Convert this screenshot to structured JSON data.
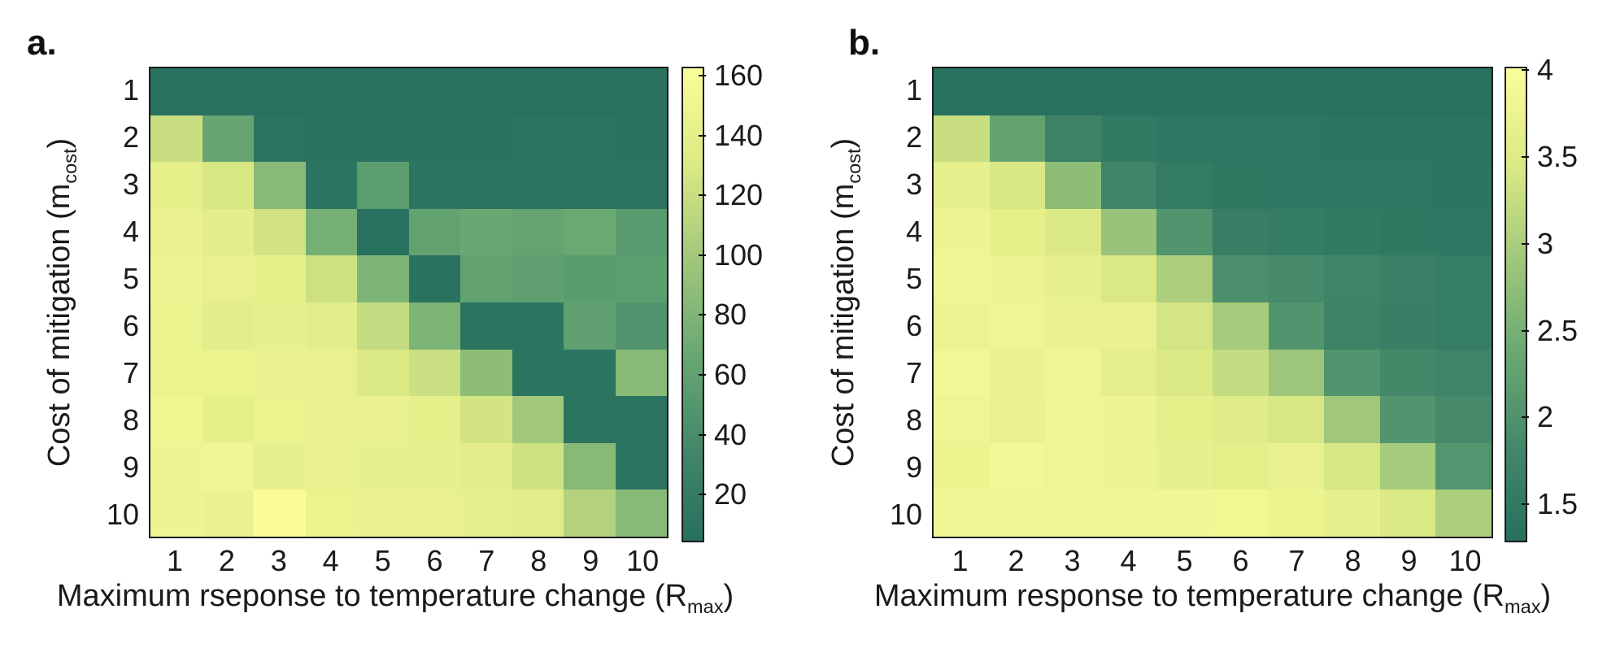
{
  "figure": {
    "background": "#ffffff",
    "colormap_stops": [
      [
        0.0,
        "#26705e"
      ],
      [
        0.2,
        "#44886a"
      ],
      [
        0.4,
        "#6aa973"
      ],
      [
        0.6,
        "#a2c87b"
      ],
      [
        0.8,
        "#dcea85"
      ],
      [
        1.0,
        "#fafc9a"
      ]
    ],
    "border_color": "#1c1c1c"
  },
  "chart_data": [
    {
      "type": "heatmap",
      "tag": "a.",
      "xlabel_pre": "Maximum rseponse to temperature change (R",
      "xlabel_sub": "max",
      "xlabel_post": ")",
      "ylabel_pre": "Cost of mitigation (m",
      "ylabel_sub": "cost",
      "ylabel_post": ")",
      "x_ticks": [
        "1",
        "2",
        "3",
        "4",
        "5",
        "6",
        "7",
        "8",
        "9",
        "10"
      ],
      "y_ticks": [
        "1",
        "2",
        "3",
        "4",
        "5",
        "6",
        "7",
        "8",
        "9",
        "10"
      ],
      "vmin": 4,
      "vmax": 163,
      "colorbar_ticks": [
        "160",
        "140",
        "120",
        "100",
        "80",
        "60",
        "40",
        "20"
      ],
      "colorbar_tick_values": [
        160,
        140,
        120,
        100,
        80,
        60,
        40,
        20
      ],
      "legend_position": "right",
      "grid": false,
      "values": [
        [
          7,
          7,
          7,
          7,
          7,
          7,
          7,
          7,
          7,
          7
        ],
        [
          120,
          64,
          9,
          8,
          8,
          8,
          8,
          9,
          9,
          8
        ],
        [
          141,
          128,
          84,
          10,
          56,
          11,
          11,
          10,
          10,
          10
        ],
        [
          146,
          139,
          125,
          74,
          6,
          61,
          67,
          63,
          68,
          53
        ],
        [
          149,
          144,
          141,
          123,
          79,
          7,
          62,
          58,
          55,
          57
        ],
        [
          147,
          139,
          142,
          138,
          118,
          79,
          9,
          9,
          59,
          47
        ],
        [
          147,
          147,
          146,
          144,
          131,
          122,
          88,
          10,
          9,
          84
        ],
        [
          150,
          141,
          147,
          146,
          145,
          141,
          126,
          99,
          9,
          9
        ],
        [
          149,
          152,
          142,
          144,
          142,
          142,
          139,
          124,
          84,
          9
        ],
        [
          149,
          146,
          163,
          147,
          146,
          144,
          142,
          136,
          109,
          84
        ]
      ]
    },
    {
      "type": "heatmap",
      "tag": "b.",
      "xlabel_pre": "Maximum response to temperature change (R",
      "xlabel_sub": "max",
      "xlabel_post": ")",
      "ylabel_pre": "Cost of mitigation (m",
      "ylabel_sub": "cost",
      "ylabel_post": ")",
      "x_ticks": [
        "1",
        "2",
        "3",
        "4",
        "5",
        "6",
        "7",
        "8",
        "9",
        "10"
      ],
      "y_ticks": [
        "1",
        "2",
        "3",
        "4",
        "5",
        "6",
        "7",
        "8",
        "9",
        "10"
      ],
      "vmin": 1.28,
      "vmax": 4.02,
      "colorbar_ticks": [
        "4",
        "3.5",
        "3",
        "2.5",
        "2",
        "1.5"
      ],
      "colorbar_tick_values": [
        4,
        3.5,
        3,
        2.5,
        2,
        1.5
      ],
      "legend_position": "right",
      "grid": false,
      "values": [
        [
          1.3,
          1.3,
          1.3,
          1.3,
          1.3,
          1.3,
          1.3,
          1.3,
          1.3,
          1.3
        ],
        [
          3.28,
          2.27,
          1.7,
          1.5,
          1.44,
          1.42,
          1.42,
          1.39,
          1.39,
          1.36
        ],
        [
          3.66,
          3.44,
          2.73,
          1.75,
          1.53,
          1.47,
          1.44,
          1.42,
          1.42,
          1.39
        ],
        [
          3.79,
          3.64,
          3.47,
          2.84,
          2.02,
          1.61,
          1.55,
          1.5,
          1.47,
          1.44
        ],
        [
          3.8,
          3.76,
          3.65,
          3.46,
          3.02,
          1.94,
          1.86,
          1.73,
          1.64,
          1.58
        ],
        [
          3.75,
          3.8,
          3.73,
          3.72,
          3.39,
          2.97,
          2.03,
          1.69,
          1.62,
          1.58
        ],
        [
          3.86,
          3.73,
          3.8,
          3.62,
          3.47,
          3.24,
          2.88,
          2.03,
          1.83,
          1.73
        ],
        [
          3.81,
          3.69,
          3.8,
          3.79,
          3.64,
          3.53,
          3.42,
          2.91,
          2.03,
          1.86
        ],
        [
          3.77,
          3.88,
          3.8,
          3.79,
          3.66,
          3.61,
          3.69,
          3.42,
          2.97,
          2.05
        ],
        [
          3.81,
          3.84,
          3.83,
          3.81,
          3.84,
          3.87,
          3.77,
          3.66,
          3.47,
          3.02
        ]
      ]
    }
  ]
}
